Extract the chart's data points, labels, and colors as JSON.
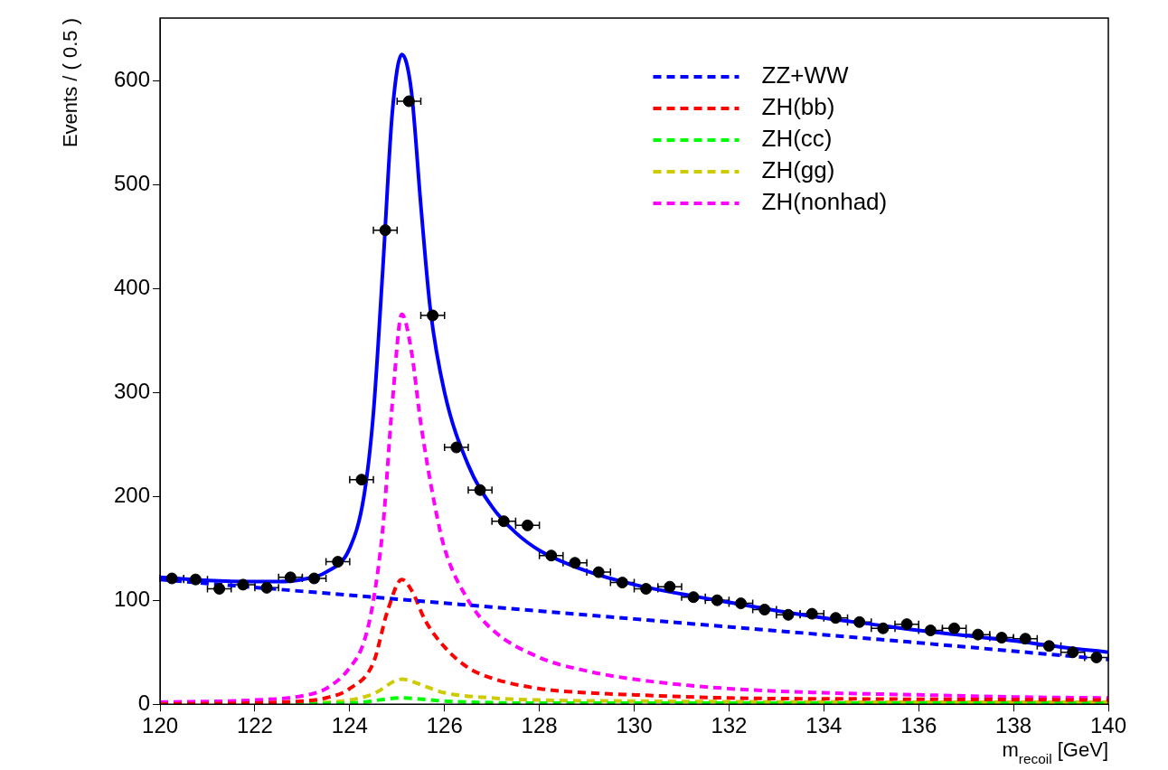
{
  "chart_data": {
    "type": "line",
    "xlabel": "m$_{recoil}$ [GeV]",
    "ylabel": "Events / ( 0.5 )",
    "xlim": [
      120,
      140
    ],
    "ylim": [
      0,
      660
    ],
    "xticks": [
      120,
      122,
      124,
      126,
      128,
      130,
      132,
      134,
      136,
      138,
      140
    ],
    "yticks": [
      0,
      100,
      200,
      300,
      400,
      500,
      600
    ],
    "grid": false,
    "legend": "top right",
    "series": [
      {
        "type": "scatter",
        "color": "#000000",
        "marker": "circle",
        "x": [
          120.25,
          120.75,
          121.25,
          121.75,
          122.25,
          122.75,
          123.25,
          123.75,
          124.25,
          124.75,
          125.25,
          125.75,
          126.25,
          126.75,
          127.25,
          127.75,
          128.25,
          128.75,
          129.25,
          129.75,
          130.25,
          130.75,
          131.25,
          131.75,
          132.25,
          132.75,
          133.25,
          133.75,
          134.25,
          134.75,
          135.25,
          135.75,
          136.25,
          136.75,
          137.25,
          137.75,
          138.25,
          138.75,
          139.25,
          139.75
        ],
        "values": [
          121,
          120,
          111,
          115,
          112,
          122,
          121,
          137,
          216,
          456,
          580,
          374,
          247,
          206,
          176,
          172,
          143,
          136,
          127,
          117,
          111,
          113,
          103,
          100,
          97,
          91,
          86,
          87,
          83,
          79,
          73,
          77,
          71,
          73,
          67,
          64,
          63,
          56,
          50,
          45
        ],
        "xerrors": [
          0.25,
          0.25,
          0.25,
          0.25,
          0.25,
          0.25,
          0.25,
          0.25,
          0.25,
          0.25,
          0.25,
          0.25,
          0.25,
          0.25,
          0.25,
          0.25,
          0.25,
          0.25,
          0.25,
          0.25,
          0.25,
          0.25,
          0.25,
          0.25,
          0.25,
          0.25,
          0.25,
          0.25,
          0.25,
          0.25,
          0.25,
          0.25,
          0.25,
          0.25,
          0.25,
          0.25,
          0.25,
          0.25,
          0.25,
          0.25
        ]
      },
      {
        "color": "#0000ff",
        "line_style": "solid",
        "marker": "none",
        "x": [
          120,
          121,
          122,
          122.5,
          123,
          123.5,
          124,
          124.3,
          124.5,
          124.7,
          124.9,
          125.1,
          125.3,
          125.5,
          125.7,
          126,
          126.5,
          127,
          127.5,
          128,
          129,
          130,
          131,
          132,
          133,
          134,
          135,
          136,
          137,
          138,
          139,
          140
        ],
        "values": [
          122,
          119,
          118,
          118,
          120,
          127,
          150,
          200,
          280,
          420,
          570,
          625,
          590,
          480,
          380,
          300,
          230,
          190,
          165,
          148,
          128,
          115,
          106,
          98,
          90,
          83,
          77,
          71,
          66,
          61,
          55,
          50
        ]
      },
      {
        "name": "ZZ+WW",
        "color": "#0000ff",
        "line_style": "dashed",
        "marker": "none",
        "x": [
          120,
          125,
          130,
          135,
          140
        ],
        "values": [
          120,
          101,
          82,
          63,
          43
        ]
      },
      {
        "name": "ZH(bb)",
        "color": "#ff0000",
        "line_style": "dashed",
        "marker": "none",
        "x": [
          120,
          123,
          123.5,
          124,
          124.5,
          124.8,
          125.1,
          125.3,
          125.6,
          126,
          126.5,
          127,
          128,
          129,
          130,
          132,
          135,
          140
        ],
        "values": [
          0,
          3,
          6,
          15,
          40,
          90,
          120,
          110,
          80,
          55,
          35,
          25,
          15,
          11,
          9,
          6,
          5,
          4
        ]
      },
      {
        "name": "ZH(cc)",
        "color": "#00ff00",
        "line_style": "dashed",
        "marker": "none",
        "x": [
          120,
          124,
          125.1,
          126,
          128,
          140
        ],
        "values": [
          0,
          1,
          6,
          3,
          1,
          1
        ]
      },
      {
        "name": "ZH(gg)",
        "color": "#cccc00",
        "line_style": "dashed",
        "marker": "none",
        "x": [
          120,
          123,
          124,
          124.5,
          125.1,
          125.6,
          126,
          127,
          128,
          130,
          135,
          140
        ],
        "values": [
          0,
          1,
          4,
          10,
          24,
          17,
          11,
          6,
          4,
          3,
          2,
          2
        ]
      },
      {
        "name": "ZH(nonhad)",
        "color": "#ff00ff",
        "line_style": "dashed",
        "marker": "none",
        "x": [
          120,
          122,
          123,
          123.5,
          124,
          124.3,
          124.5,
          124.7,
          124.9,
          125.1,
          125.3,
          125.5,
          125.8,
          126,
          126.5,
          127,
          128,
          129,
          130,
          132,
          134,
          136,
          138,
          140
        ],
        "values": [
          2,
          4,
          8,
          15,
          35,
          60,
          100,
          170,
          290,
          375,
          340,
          270,
          190,
          150,
          100,
          72,
          45,
          32,
          24,
          15,
          11,
          9,
          7,
          6
        ]
      }
    ]
  }
}
